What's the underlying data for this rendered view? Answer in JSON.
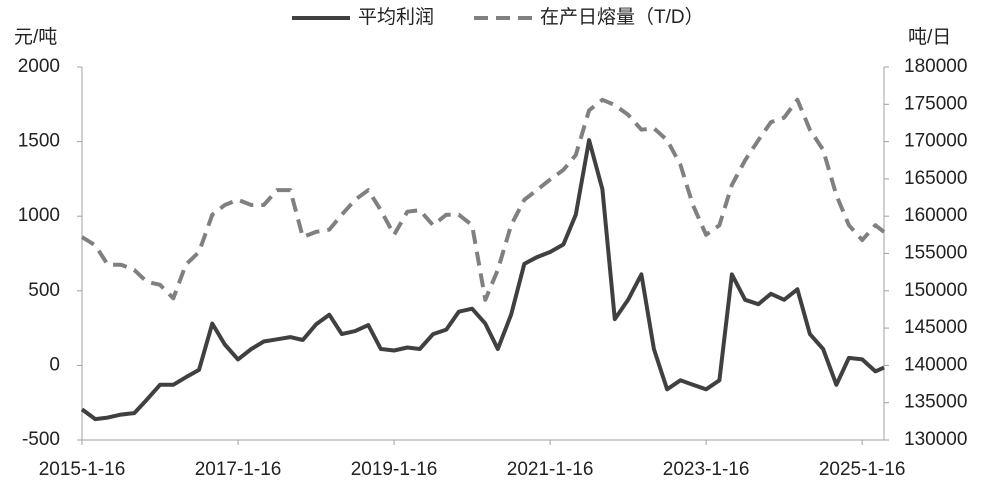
{
  "chart_data": {
    "type": "line",
    "legend": "top",
    "y_label": "元/吨",
    "y2_label": "吨/日",
    "x": [
      2015.04,
      2015.21,
      2015.37,
      2015.54,
      2015.71,
      2015.87,
      2016.04,
      2016.21,
      2016.37,
      2016.54,
      2016.71,
      2016.87,
      2017.04,
      2017.21,
      2017.37,
      2017.54,
      2017.71,
      2017.87,
      2018.04,
      2018.21,
      2018.37,
      2018.54,
      2018.71,
      2018.87,
      2019.04,
      2019.21,
      2019.37,
      2019.54,
      2019.71,
      2019.87,
      2020.04,
      2020.21,
      2020.37,
      2020.54,
      2020.71,
      2020.87,
      2021.04,
      2021.21,
      2021.37,
      2021.54,
      2021.71,
      2021.87,
      2022.04,
      2022.21,
      2022.37,
      2022.54,
      2022.71,
      2022.87,
      2023.04,
      2023.21,
      2023.37,
      2023.54,
      2023.71,
      2023.87,
      2024.04,
      2024.21,
      2024.37,
      2024.54,
      2024.71,
      2024.87,
      2025.04,
      2025.21,
      2025.32
    ],
    "xlim": [
      2015.04,
      2025.32
    ],
    "xticks": [
      {
        "value": 2015.04,
        "label": "2015-1-16"
      },
      {
        "value": 2017.04,
        "label": "2017-1-16"
      },
      {
        "value": 2019.04,
        "label": "2019-1-16"
      },
      {
        "value": 2021.04,
        "label": "2021-1-16"
      },
      {
        "value": 2023.04,
        "label": "2023-1-16"
      },
      {
        "value": 2025.04,
        "label": "2025-1-16"
      }
    ],
    "ylim": [
      -500,
      2000
    ],
    "yticks": [
      -500,
      0,
      500,
      1000,
      1500,
      2000
    ],
    "y2lim": [
      130000,
      180000
    ],
    "y2ticks": [
      130000,
      135000,
      140000,
      145000,
      150000,
      155000,
      160000,
      165000,
      170000,
      175000,
      180000
    ],
    "series": [
      {
        "name": "平均利润",
        "color": "#404040",
        "style": "solid",
        "values": [
          -295,
          -360,
          -350,
          -330,
          -320,
          -230,
          -130,
          -130,
          -80,
          -30,
          280,
          140,
          40,
          110,
          160,
          175,
          190,
          170,
          275,
          340,
          210,
          230,
          270,
          110,
          100,
          120,
          110,
          210,
          240,
          360,
          380,
          280,
          110,
          340,
          680,
          725,
          760,
          810,
          1010,
          1510,
          1180,
          310,
          440,
          610,
          110,
          -160,
          -100,
          -130,
          -160,
          -100,
          610,
          440,
          410,
          480,
          440,
          510,
          210,
          110,
          -130,
          50,
          40,
          -40,
          -15
        ]
      },
      {
        "name": "在产日熔量（T/D）",
        "color": "#808080",
        "style": "dashed",
        "axis": "y2",
        "values": [
          157200,
          156100,
          153500,
          153500,
          152800,
          151200,
          150800,
          149000,
          153500,
          155200,
          160200,
          161500,
          162200,
          161500,
          161500,
          163500,
          163500,
          157200,
          157900,
          158200,
          160200,
          162200,
          163500,
          160800,
          157500,
          160600,
          160800,
          158800,
          160200,
          160200,
          158800,
          148800,
          152800,
          158800,
          162200,
          163500,
          164900,
          166200,
          168200,
          174200,
          175600,
          174900,
          173600,
          171600,
          171800,
          170200,
          166900,
          161500,
          157500,
          158800,
          164200,
          167500,
          170200,
          172600,
          173200,
          175600,
          171600,
          168900,
          162800,
          158800,
          156800,
          158800,
          157900
        ]
      }
    ]
  }
}
